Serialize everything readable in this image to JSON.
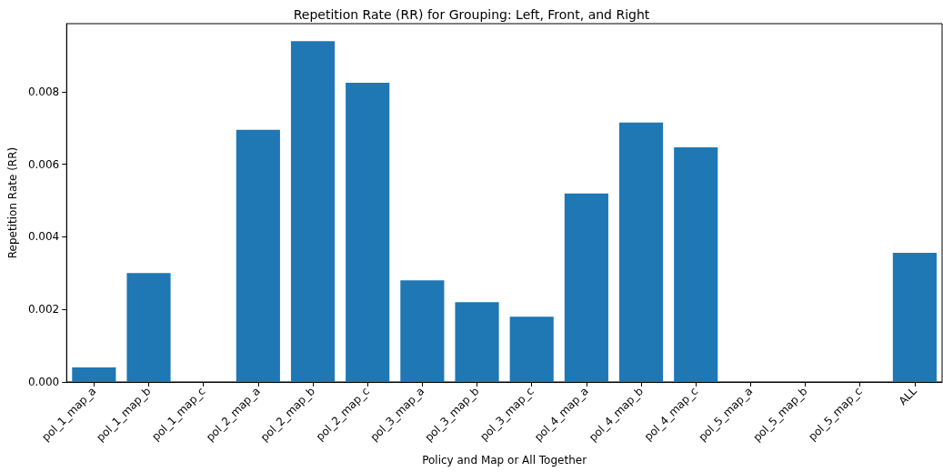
{
  "chart_data": {
    "type": "bar",
    "title": "Repetition Rate (RR) for Grouping: Left, Front, and Right",
    "xlabel": "Policy and Map or All Together",
    "ylabel": "Repetition Rate (RR)",
    "categories": [
      "pol_1_map_a",
      "pol_1_map_b",
      "pol_1_map_c",
      "pol_2_map_a",
      "pol_2_map_b",
      "pol_2_map_c",
      "pol_3_map_a",
      "pol_3_map_b",
      "pol_3_map_c",
      "pol_4_map_a",
      "pol_4_map_b",
      "pol_4_map_c",
      "pol_5_map_a",
      "pol_5_map_b",
      "pol_5_map_c",
      "ALL"
    ],
    "values": [
      0.0004,
      0.003,
      0,
      0.00695,
      0.0094,
      0.00825,
      0.0028,
      0.0022,
      0.0018,
      0.0052,
      0.00715,
      0.00647,
      0,
      0,
      0,
      0.00356
    ],
    "color": "#1f77b4",
    "ylim": [
      0,
      0.00988
    ],
    "yticks": [
      {
        "value": 0,
        "label": "0.000"
      },
      {
        "value": 0.002,
        "label": "0.002"
      },
      {
        "value": 0.004,
        "label": "0.004"
      },
      {
        "value": 0.006,
        "label": "0.006"
      },
      {
        "value": 0.008,
        "label": "0.008"
      }
    ],
    "grid": false
  }
}
